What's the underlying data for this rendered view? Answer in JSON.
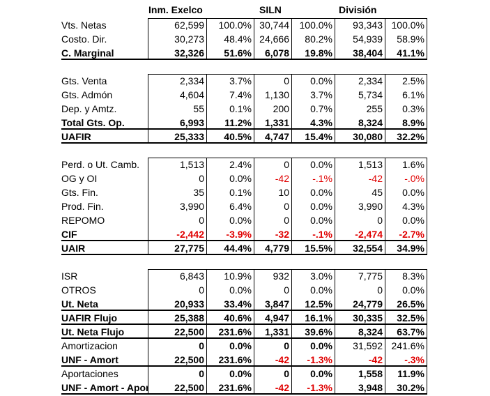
{
  "headers": [
    "Inm. Exelco",
    "SILN",
    "División"
  ],
  "groups": [
    {
      "rows": [
        {
          "label": "Vts. Netas",
          "bold": false,
          "cells": [
            {
              "v": "62,599"
            },
            {
              "v": "100.0%"
            },
            {
              "v": "30,744"
            },
            {
              "v": "100.0%"
            },
            {
              "v": "93,343"
            },
            {
              "v": "100.0%"
            }
          ]
        },
        {
          "label": "Costo. Dir.",
          "bold": false,
          "cells": [
            {
              "v": "30,273"
            },
            {
              "v": "48.4%"
            },
            {
              "v": "24,666"
            },
            {
              "v": "80.2%"
            },
            {
              "v": "54,939"
            },
            {
              "v": "58.9%"
            }
          ]
        },
        {
          "label": "C. Marginal",
          "bold": true,
          "cells": [
            {
              "v": "32,326"
            },
            {
              "v": "51.6%"
            },
            {
              "v": "6,078"
            },
            {
              "v": "19.8%"
            },
            {
              "v": "38,404"
            },
            {
              "v": "41.1%"
            }
          ]
        }
      ]
    },
    {
      "rows": [
        {
          "label": "Gts. Venta",
          "bold": false,
          "cells": [
            {
              "v": "2,334"
            },
            {
              "v": "3.7%"
            },
            {
              "v": "0"
            },
            {
              "v": "0.0%"
            },
            {
              "v": "2,334"
            },
            {
              "v": "2.5%"
            }
          ]
        },
        {
          "label": "Gts. Admón",
          "bold": false,
          "cells": [
            {
              "v": "4,604"
            },
            {
              "v": "7.4%"
            },
            {
              "v": "1,130"
            },
            {
              "v": "3.7%"
            },
            {
              "v": "5,734"
            },
            {
              "v": "6.1%"
            }
          ]
        },
        {
          "label": "Dep. y Amtz.",
          "bold": false,
          "cells": [
            {
              "v": "55"
            },
            {
              "v": "0.1%"
            },
            {
              "v": "200"
            },
            {
              "v": "0.7%"
            },
            {
              "v": "255"
            },
            {
              "v": "0.3%"
            }
          ]
        },
        {
          "label": "Total Gts. Op.",
          "bold": true,
          "cells": [
            {
              "v": "6,993"
            },
            {
              "v": "11.2%"
            },
            {
              "v": "1,331"
            },
            {
              "v": "4.3%"
            },
            {
              "v": "8,324"
            },
            {
              "v": "8.9%"
            }
          ]
        },
        {
          "label": "UAFIR",
          "bold": true,
          "cells": [
            {
              "v": "25,333"
            },
            {
              "v": "40.5%"
            },
            {
              "v": "4,747"
            },
            {
              "v": "15.4%"
            },
            {
              "v": "30,080"
            },
            {
              "v": "32.2%"
            }
          ]
        }
      ]
    },
    {
      "rows": [
        {
          "label": "Perd. o Ut. Camb.",
          "bold": false,
          "cells": [
            {
              "v": "1,513"
            },
            {
              "v": "2.4%"
            },
            {
              "v": "0"
            },
            {
              "v": "0.0%"
            },
            {
              "v": "1,513"
            },
            {
              "v": "1.6%"
            }
          ]
        },
        {
          "label": "OG y OI",
          "bold": false,
          "cells": [
            {
              "v": "0"
            },
            {
              "v": "0.0%"
            },
            {
              "v": "-42",
              "red": true
            },
            {
              "v": "-.1%",
              "red": true
            },
            {
              "v": "-42",
              "red": true
            },
            {
              "v": "-.0%",
              "red": true
            }
          ]
        },
        {
          "label": "Gts. Fin.",
          "bold": false,
          "cells": [
            {
              "v": "35"
            },
            {
              "v": "0.1%"
            },
            {
              "v": "10"
            },
            {
              "v": "0.0%"
            },
            {
              "v": "45"
            },
            {
              "v": "0.0%"
            }
          ]
        },
        {
          "label": "Prod. Fin.",
          "bold": false,
          "cells": [
            {
              "v": "3,990"
            },
            {
              "v": "6.4%"
            },
            {
              "v": "0"
            },
            {
              "v": "0.0%"
            },
            {
              "v": "3,990"
            },
            {
              "v": "4.3%"
            }
          ]
        },
        {
          "label": "REPOMO",
          "bold": false,
          "cells": [
            {
              "v": "0"
            },
            {
              "v": "0.0%"
            },
            {
              "v": "0"
            },
            {
              "v": "0.0%"
            },
            {
              "v": "0"
            },
            {
              "v": "0.0%"
            }
          ]
        },
        {
          "label": "CIF",
          "bold": true,
          "cells": [
            {
              "v": "-2,442",
              "red": true
            },
            {
              "v": "-3.9%",
              "red": true
            },
            {
              "v": "-32",
              "red": true
            },
            {
              "v": "-.1%",
              "red": true
            },
            {
              "v": "-2,474",
              "red": true
            },
            {
              "v": "-2.7%",
              "red": true
            }
          ]
        },
        {
          "label": "UAIR",
          "bold": true,
          "cells": [
            {
              "v": "27,775"
            },
            {
              "v": "44.4%"
            },
            {
              "v": "4,779"
            },
            {
              "v": "15.5%"
            },
            {
              "v": "32,554"
            },
            {
              "v": "34.9%"
            }
          ]
        }
      ]
    },
    {
      "rows": [
        {
          "label": "ISR",
          "bold": false,
          "cells": [
            {
              "v": "6,843"
            },
            {
              "v": "10.9%"
            },
            {
              "v": "932"
            },
            {
              "v": "3.0%"
            },
            {
              "v": "7,775"
            },
            {
              "v": "8.3%"
            }
          ]
        },
        {
          "label": "OTROS",
          "bold": false,
          "cells": [
            {
              "v": "0"
            },
            {
              "v": "0.0%"
            },
            {
              "v": "0"
            },
            {
              "v": "0.0%"
            },
            {
              "v": "0"
            },
            {
              "v": "0.0%"
            }
          ]
        },
        {
          "label": "Ut. Neta",
          "bold": true,
          "cells": [
            {
              "v": "20,933"
            },
            {
              "v": "33.4%"
            },
            {
              "v": "3,847"
            },
            {
              "v": "12.5%"
            },
            {
              "v": "24,779"
            },
            {
              "v": "26.5%"
            }
          ]
        },
        {
          "label": "UAFIR Flujo",
          "bold": true,
          "cells": [
            {
              "v": "25,388"
            },
            {
              "v": "40.6%"
            },
            {
              "v": "4,947"
            },
            {
              "v": "16.1%"
            },
            {
              "v": "30,335"
            },
            {
              "v": "32.5%"
            }
          ]
        },
        {
          "label": "Ut. Neta Flujo",
          "bold": true,
          "cells": [
            {
              "v": "22,500"
            },
            {
              "v": "231.6%"
            },
            {
              "v": "1,331"
            },
            {
              "v": "39.6%"
            },
            {
              "v": "8,324"
            },
            {
              "v": "63.7%"
            }
          ]
        },
        {
          "label": "Amortizacion",
          "bold": false,
          "cells": [
            {
              "v": "0",
              "b": true
            },
            {
              "v": "0.0%",
              "b": true
            },
            {
              "v": "0",
              "b": true
            },
            {
              "v": "0.0%",
              "b": true
            },
            {
              "v": "31,592"
            },
            {
              "v": "241.6%"
            }
          ]
        },
        {
          "label": "UNF - Amort",
          "bold": true,
          "cells": [
            {
              "v": "22,500"
            },
            {
              "v": "231.6%"
            },
            {
              "v": "-42",
              "red": true
            },
            {
              "v": "-1.3%",
              "red": true
            },
            {
              "v": "-42",
              "red": true
            },
            {
              "v": "-.3%",
              "red": true
            }
          ]
        },
        {
          "label": "Aportaciones",
          "bold": false,
          "cells": [
            {
              "v": "0",
              "b": true
            },
            {
              "v": "0.0%",
              "b": true
            },
            {
              "v": "0",
              "b": true
            },
            {
              "v": "0.0%",
              "b": true
            },
            {
              "v": "1,558",
              "b": true
            },
            {
              "v": "11.9%",
              "b": true
            }
          ]
        },
        {
          "label": "UNF - Amort - Apor",
          "bold": true,
          "cells": [
            {
              "v": "22,500"
            },
            {
              "v": "231.6%"
            },
            {
              "v": "-42",
              "red": true
            },
            {
              "v": "-1.3%",
              "red": true
            },
            {
              "v": "3,948"
            },
            {
              "v": "30.2%"
            }
          ]
        }
      ]
    }
  ]
}
